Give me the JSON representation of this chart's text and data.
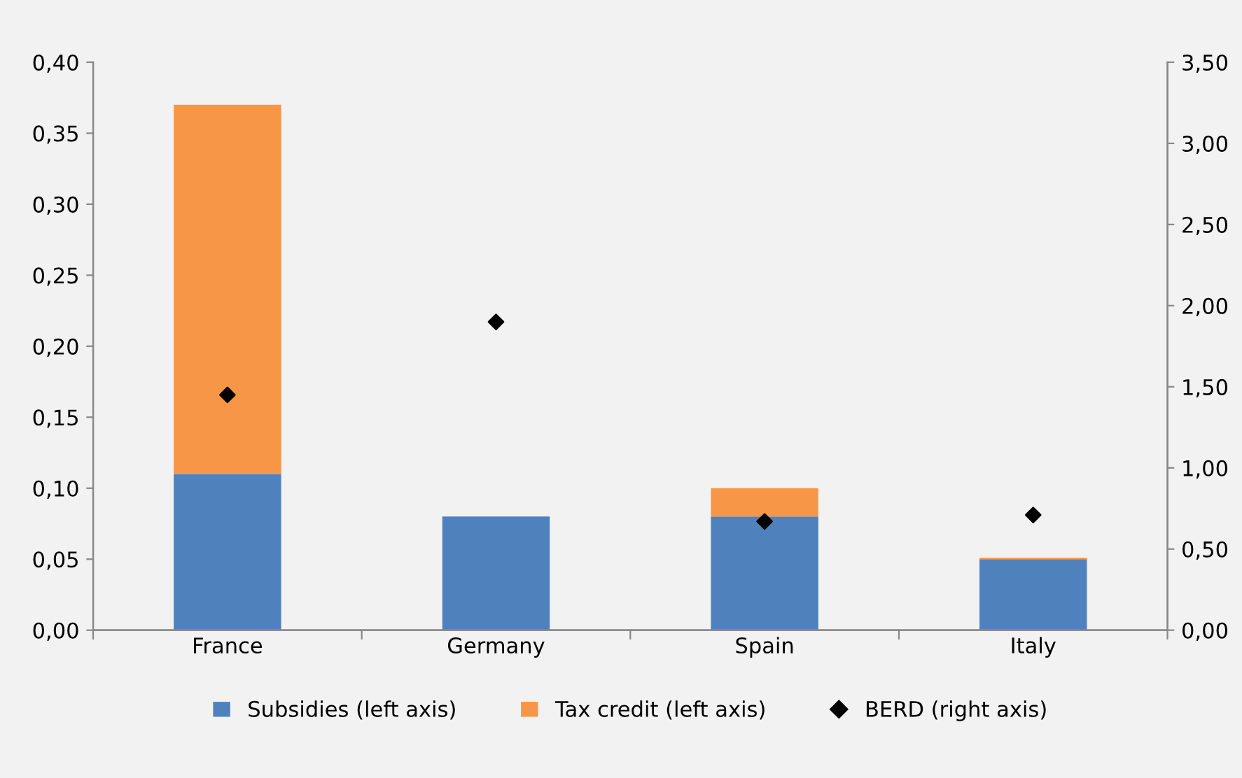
{
  "chart_data": {
    "type": "bar",
    "stacked": true,
    "categories": [
      "France",
      "Germany",
      "Spain",
      "Italy"
    ],
    "series": [
      {
        "name": "Subsidies (left axis)",
        "color": "#4f81bd",
        "values": [
          0.11,
          0.08,
          0.08,
          0.05
        ]
      },
      {
        "name": "Tax credit (left axis)",
        "color": "#f79646",
        "values": [
          0.26,
          0.0,
          0.02,
          0.001
        ]
      },
      {
        "name": "BERD (right axis)",
        "type": "scatter",
        "axis": "y2",
        "marker": "diamond",
        "color": "#000000",
        "values": [
          1.45,
          1.9,
          0.67,
          0.71
        ]
      }
    ],
    "ylim": [
      0,
      0.4
    ],
    "yticks": [
      {
        "value": 0,
        "label": "0,00"
      },
      {
        "value": 0.05,
        "label": "0,05"
      },
      {
        "value": 0.1,
        "label": "0,10"
      },
      {
        "value": 0.15,
        "label": "0,15"
      },
      {
        "value": 0.2,
        "label": "0,20"
      },
      {
        "value": 0.25,
        "label": "0,25"
      },
      {
        "value": 0.3,
        "label": "0,30"
      },
      {
        "value": 0.35,
        "label": "0,35"
      },
      {
        "value": 0.4,
        "label": "0,40"
      }
    ],
    "y2lim": [
      0,
      3.5
    ],
    "y2ticks": [
      {
        "value": 0,
        "label": "0,00"
      },
      {
        "value": 0.5,
        "label": "0,50"
      },
      {
        "value": 1.0,
        "label": "1,00"
      },
      {
        "value": 1.5,
        "label": "1,50"
      },
      {
        "value": 2.0,
        "label": "2,00"
      },
      {
        "value": 2.5,
        "label": "2,50"
      },
      {
        "value": 3.0,
        "label": "3,00"
      },
      {
        "value": 3.5,
        "label": "3,50"
      }
    ],
    "grid": false,
    "legend": "bottom"
  }
}
